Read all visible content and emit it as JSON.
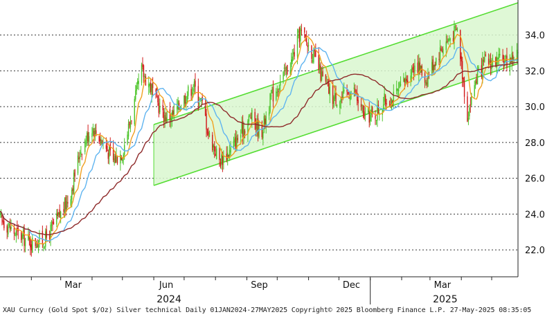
{
  "chart_data": {
    "type": "candlestick",
    "title": "",
    "xlabel": "",
    "ylabel": "",
    "ylim": [
      20.5,
      35.8
    ],
    "y_ticks": [
      "22.0",
      "24.0",
      "26.0",
      "28.0",
      "30.0",
      "32.0",
      "34.0"
    ],
    "x_months": [
      "Mar",
      "Jun",
      "Sep",
      "Dec",
      "Mar"
    ],
    "x_years": [
      "2024",
      "2025"
    ],
    "x_range": [
      "2024-01-01",
      "2025-05-27"
    ],
    "grid": true,
    "colors": {
      "bull": "#4cc42a",
      "bear": "#d21a1a",
      "channel_fill": "#d9f7cf",
      "channel_line": "#55dd33",
      "ma_fast": "#f0a020",
      "ma_mid": "#5fb4f0",
      "ma_slow": "#8e2a2a"
    },
    "series": [
      {
        "name": "price",
        "values": [
          [
            "2024-01-01",
            23.8
          ],
          [
            "2024-01-15",
            23.0
          ],
          [
            "2024-02-01",
            22.4
          ],
          [
            "2024-02-15",
            22.6
          ],
          [
            "2024-03-01",
            24.0
          ],
          [
            "2024-03-10",
            25.0
          ],
          [
            "2024-03-20",
            27.5
          ],
          [
            "2024-04-01",
            28.9
          ],
          [
            "2024-04-12",
            28.0
          ],
          [
            "2024-04-22",
            27.0
          ],
          [
            "2024-05-01",
            27.5
          ],
          [
            "2024-05-10",
            29.5
          ],
          [
            "2024-05-20",
            32.0
          ],
          [
            "2024-05-30",
            31.0
          ],
          [
            "2024-06-10",
            29.5
          ],
          [
            "2024-06-20",
            29.5
          ],
          [
            "2024-07-01",
            30.5
          ],
          [
            "2024-07-10",
            31.2
          ],
          [
            "2024-07-20",
            30.0
          ],
          [
            "2024-07-25",
            28.5
          ],
          [
            "2024-08-05",
            27.0
          ],
          [
            "2024-08-15",
            27.5
          ],
          [
            "2024-08-26",
            28.5
          ],
          [
            "2024-09-05",
            29.5
          ],
          [
            "2024-09-15",
            28.5
          ],
          [
            "2024-09-25",
            30.5
          ],
          [
            "2024-10-05",
            31.5
          ],
          [
            "2024-10-15",
            32.5
          ],
          [
            "2024-10-24",
            34.2
          ],
          [
            "2024-11-05",
            33.0
          ],
          [
            "2024-11-15",
            31.5
          ],
          [
            "2024-11-25",
            30.5
          ],
          [
            "2024-12-05",
            30.5
          ],
          [
            "2024-12-15",
            31.0
          ],
          [
            "2024-12-25",
            29.5
          ],
          [
            "2025-01-05",
            29.5
          ],
          [
            "2025-01-15",
            30.3
          ],
          [
            "2025-01-25",
            30.5
          ],
          [
            "2025-02-05",
            31.5
          ],
          [
            "2025-02-15",
            32.5
          ],
          [
            "2025-02-25",
            31.5
          ],
          [
            "2025-03-05",
            32.5
          ],
          [
            "2025-03-15",
            33.5
          ],
          [
            "2025-03-28",
            34.3
          ],
          [
            "2025-04-07",
            29.5
          ],
          [
            "2025-04-15",
            31.5
          ],
          [
            "2025-04-25",
            32.5
          ],
          [
            "2025-05-05",
            32.5
          ],
          [
            "2025-05-15",
            32.5
          ],
          [
            "2025-05-27",
            33.0
          ]
        ]
      }
    ],
    "channel": {
      "upper": [
        [
          "2024-06-01",
          29.0
        ],
        [
          "2025-05-27",
          35.8
        ]
      ],
      "lower": [
        [
          "2024-06-01",
          25.6
        ],
        [
          "2025-05-27",
          32.4
        ]
      ]
    }
  },
  "footer_text": "XAU Curncy (Gold Spot  $/Oz) Silver technical  Daily 01JAN2024-27MAY2025  Copyright© 2025 Bloomberg Finance L.P.  27-May-2025 08:35:05"
}
